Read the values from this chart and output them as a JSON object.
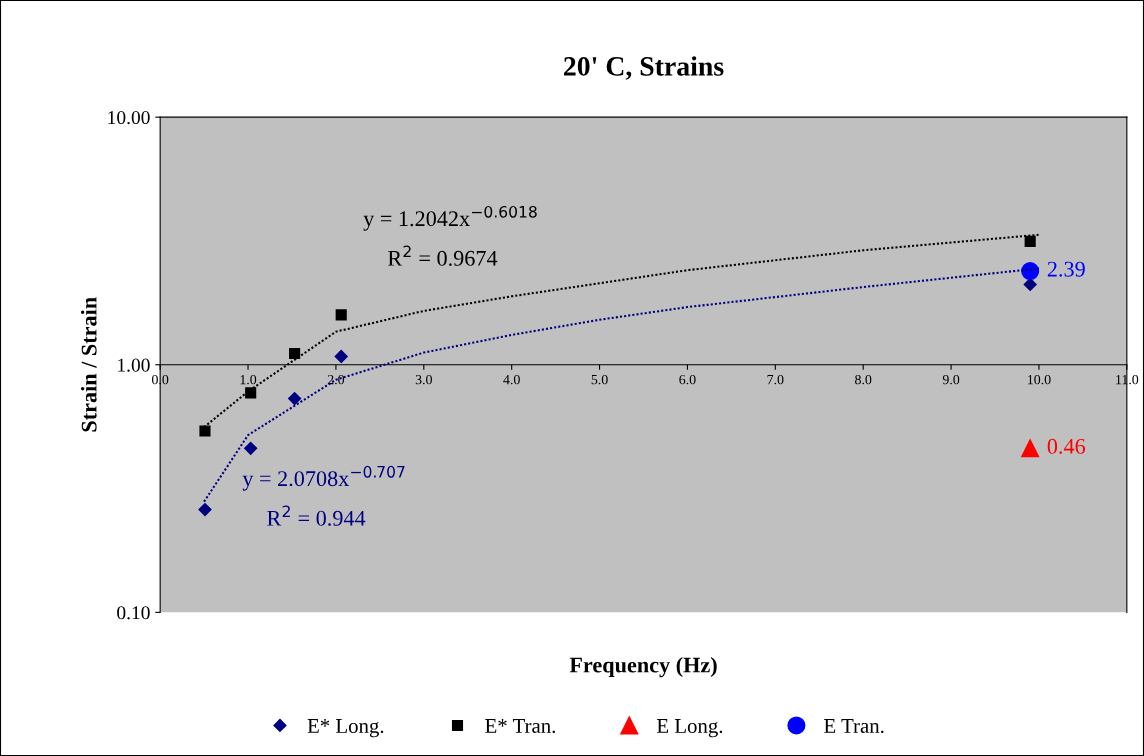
{
  "chart_data": {
    "type": "scatter",
    "title": "20' C, Strains",
    "xlabel": "Frequency (Hz)",
    "ylabel": "Strain / Strain",
    "log": "y",
    "grid": false,
    "legend": "bottom",
    "xlim": [
      0,
      11
    ],
    "ylim": [
      0.1,
      10
    ],
    "xticks": [
      {
        "value": 0,
        "label": "0.0"
      },
      {
        "value": 1,
        "label": "1.0"
      },
      {
        "value": 2,
        "label": "2.0"
      },
      {
        "value": 3,
        "label": "3.0"
      },
      {
        "value": 4,
        "label": "4.0"
      },
      {
        "value": 5,
        "label": "5.0"
      },
      {
        "value": 6,
        "label": "6.0"
      },
      {
        "value": 7,
        "label": "7.0"
      },
      {
        "value": 8,
        "label": "8.0"
      },
      {
        "value": 9,
        "label": "9.0"
      },
      {
        "value": 10,
        "label": "10.0"
      },
      {
        "value": 11,
        "label": "11.0"
      }
    ],
    "yticks": [
      {
        "value": 0.1,
        "label": "0.10"
      },
      {
        "value": 1,
        "label": "1.00"
      },
      {
        "value": 10,
        "label": "10.00"
      }
    ],
    "series": [
      {
        "name": "E* Long.",
        "color": "#000080",
        "marker": "diamond",
        "x": [
          0.51,
          1.03,
          1.53,
          2.06,
          9.9
        ],
        "values": [
          0.26,
          0.46,
          0.73,
          1.08,
          2.11
        ]
      },
      {
        "name": "E* Tran.",
        "color": "#000000",
        "marker": "square",
        "x": [
          0.51,
          1.03,
          1.53,
          2.06,
          9.9
        ],
        "values": [
          0.54,
          0.77,
          1.11,
          1.59,
          3.15
        ]
      },
      {
        "name": "E Long.",
        "color": "#ff0000",
        "marker": "triangle",
        "x": [
          9.9
        ],
        "values": [
          0.46
        ],
        "value_labels": [
          "0.46"
        ]
      },
      {
        "name": "E Tran.",
        "color": "#0000ff",
        "marker": "circle",
        "x": [
          9.9
        ],
        "values": [
          2.39
        ],
        "value_labels": [
          "2.39"
        ]
      },
      {
        "type": "line",
        "line_style": "dotted",
        "color": "#000000",
        "x": [
          0.5,
          1,
          2,
          3,
          4,
          6,
          8,
          10
        ],
        "values": [
          0.56,
          0.78,
          1.36,
          1.65,
          1.89,
          2.41,
          2.9,
          3.35
        ]
      },
      {
        "type": "line",
        "line_style": "dotted",
        "color": "#000080",
        "x": [
          0.5,
          1,
          2,
          3,
          4,
          5,
          6,
          8,
          10
        ],
        "values": [
          0.28,
          0.52,
          0.87,
          1.12,
          1.32,
          1.52,
          1.71,
          2.06,
          2.45
        ]
      }
    ],
    "annotations": [
      "y = 1.2042x$^{−0.6018}$",
      "R$^{2}$ = 0.9674",
      "y = 2.0708x$^{−0.707}$",
      "R$^{2}$ = 0.944"
    ]
  }
}
